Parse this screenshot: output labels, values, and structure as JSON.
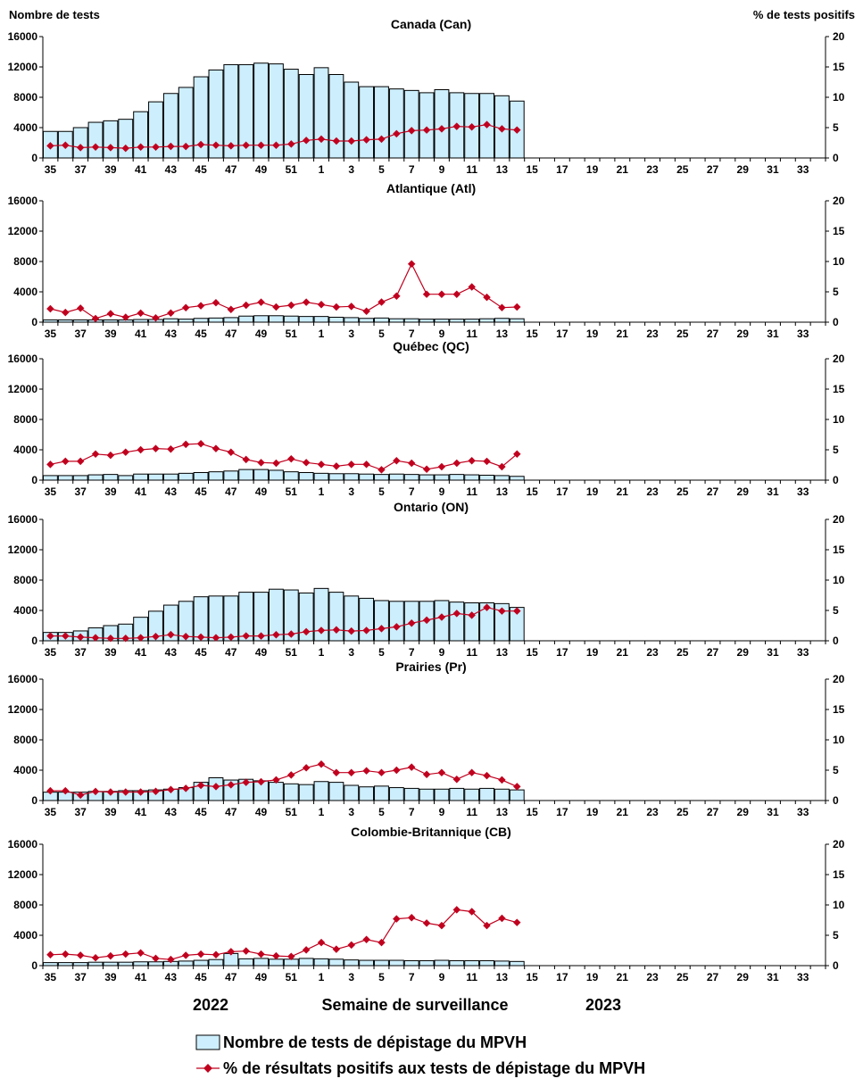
{
  "chart_data": {
    "type": "bar+line",
    "y_left_label": "Nombre de tests",
    "y_right_label": "% de tests positifs",
    "y_left_range": [
      0,
      16000
    ],
    "y_left_ticks": [
      "0",
      "4000",
      "8000",
      "12000",
      "16000"
    ],
    "y_right_range": [
      0,
      20
    ],
    "y_right_ticks": [
      "0",
      "5",
      "10",
      "15",
      "20"
    ],
    "weeks": [
      35,
      36,
      37,
      38,
      39,
      40,
      41,
      42,
      43,
      44,
      45,
      46,
      47,
      48,
      49,
      50,
      51,
      52,
      1,
      2,
      3,
      4,
      5,
      6,
      7,
      8,
      9,
      10,
      11,
      12,
      13,
      14,
      15,
      16,
      17,
      18,
      19,
      20,
      21,
      22,
      23,
      24,
      25,
      26,
      27,
      28,
      29,
      30,
      31,
      32,
      33,
      34
    ],
    "week_tick_labels": [
      "35",
      "37",
      "39",
      "41",
      "43",
      "45",
      "47",
      "49",
      "51",
      "1",
      "3",
      "5",
      "7",
      "9",
      "11",
      "13",
      "15",
      "17",
      "19",
      "21",
      "23",
      "25",
      "27",
      "29",
      "31",
      "33"
    ],
    "x_axis_title": "Semaine de surveillance",
    "year_labels": [
      "2022",
      "2023"
    ],
    "legend": {
      "bars": "Nombre de tests de dépistage du MPVH",
      "line": "% de résultats positifs aux tests de dépistage du MPVH"
    },
    "panels": [
      {
        "title": "Canada (Can)",
        "tests": [
          3500,
          3500,
          4000,
          4700,
          4900,
          5100,
          6100,
          7400,
          8500,
          9300,
          10700,
          11600,
          12300,
          12300,
          12500,
          12400,
          11700,
          11000,
          11900,
          11000,
          10000,
          9400,
          9400,
          9100,
          8900,
          8600,
          9000,
          8600,
          8500,
          8500,
          8200,
          7500
        ],
        "pct_positive": [
          2.0,
          2.1,
          1.7,
          1.8,
          1.7,
          1.6,
          1.8,
          1.8,
          1.9,
          1.9,
          2.2,
          2.1,
          2.0,
          2.1,
          2.1,
          2.1,
          2.3,
          2.9,
          3.1,
          2.8,
          2.8,
          3.0,
          3.1,
          4.0,
          4.5,
          4.6,
          4.8,
          5.2,
          5.1,
          5.5,
          4.8,
          4.6
        ]
      },
      {
        "title": "Atlantique (Atl)",
        "tests": [
          300,
          300,
          300,
          300,
          300,
          300,
          350,
          350,
          450,
          400,
          500,
          550,
          600,
          800,
          850,
          850,
          800,
          750,
          750,
          650,
          600,
          500,
          550,
          450,
          450,
          400,
          400,
          400,
          400,
          450,
          500,
          450
        ],
        "pct_positive": [
          2.2,
          1.6,
          2.3,
          0.6,
          1.4,
          0.8,
          1.5,
          0.7,
          1.5,
          2.4,
          2.7,
          3.2,
          2.1,
          2.8,
          3.3,
          2.5,
          2.8,
          3.3,
          2.9,
          2.5,
          2.6,
          1.8,
          3.3,
          4.3,
          9.6,
          4.6,
          4.6,
          4.6,
          5.8,
          4.1,
          2.4,
          2.5
        ]
      },
      {
        "title": "Québec (QC)",
        "tests": [
          600,
          600,
          600,
          700,
          750,
          600,
          800,
          800,
          800,
          900,
          1000,
          1100,
          1200,
          1400,
          1400,
          1300,
          1100,
          1000,
          900,
          850,
          850,
          800,
          750,
          800,
          750,
          700,
          700,
          750,
          700,
          650,
          600,
          500
        ],
        "pct_positive": [
          2.6,
          3.1,
          3.1,
          4.3,
          4.1,
          4.6,
          5.0,
          5.2,
          5.1,
          5.9,
          6.0,
          5.2,
          4.6,
          3.4,
          2.9,
          2.8,
          3.5,
          2.9,
          2.6,
          2.3,
          2.6,
          2.6,
          1.7,
          3.2,
          2.8,
          1.8,
          2.2,
          2.8,
          3.2,
          3.1,
          2.2,
          4.3
        ]
      },
      {
        "title": "Ontario (ON)",
        "tests": [
          1100,
          1100,
          1300,
          1700,
          2000,
          2200,
          3100,
          3900,
          4700,
          5200,
          5800,
          5900,
          5900,
          6400,
          6400,
          6800,
          6700,
          6300,
          6900,
          6400,
          5900,
          5600,
          5300,
          5200,
          5200,
          5200,
          5300,
          5100,
          5000,
          5000,
          4900,
          4400
        ],
        "pct_positive": [
          0.8,
          0.8,
          0.6,
          0.5,
          0.4,
          0.4,
          0.5,
          0.7,
          1.0,
          0.7,
          0.6,
          0.5,
          0.6,
          0.8,
          0.8,
          1.0,
          1.1,
          1.5,
          1.7,
          1.8,
          1.6,
          1.7,
          2.0,
          2.3,
          2.9,
          3.4,
          3.9,
          4.5,
          4.2,
          5.5,
          4.9,
          4.9
        ]
      },
      {
        "title": "Prairies (Pr)",
        "tests": [
          1100,
          1100,
          1100,
          1200,
          1200,
          1300,
          1300,
          1400,
          1500,
          1700,
          2400,
          3000,
          2700,
          2800,
          2600,
          2400,
          2200,
          2100,
          2500,
          2400,
          2000,
          1800,
          1900,
          1700,
          1600,
          1500,
          1500,
          1600,
          1500,
          1600,
          1500,
          1400
        ],
        "pct_positive": [
          1.6,
          1.6,
          0.9,
          1.5,
          1.4,
          1.4,
          1.4,
          1.5,
          1.8,
          2.0,
          2.5,
          2.3,
          2.6,
          3.0,
          3.1,
          3.4,
          4.2,
          5.4,
          6.0,
          4.6,
          4.6,
          4.9,
          4.6,
          5.0,
          5.5,
          4.3,
          4.6,
          3.5,
          4.6,
          4.1,
          3.4,
          2.3
        ]
      },
      {
        "title": "Colombie-Britannique (CB)",
        "tests": [
          400,
          400,
          400,
          450,
          450,
          450,
          500,
          500,
          550,
          600,
          700,
          800,
          1600,
          900,
          950,
          850,
          850,
          950,
          900,
          850,
          750,
          700,
          700,
          700,
          650,
          650,
          700,
          650,
          650,
          650,
          600,
          550
        ],
        "pct_positive": [
          1.8,
          1.9,
          1.7,
          1.3,
          1.6,
          1.9,
          2.1,
          1.2,
          1.0,
          1.7,
          1.9,
          1.8,
          2.3,
          2.4,
          1.9,
          1.6,
          1.5,
          2.6,
          3.8,
          2.7,
          3.4,
          4.3,
          3.8,
          7.7,
          7.9,
          7.0,
          6.6,
          9.2,
          8.9,
          6.6,
          7.8,
          7.1
        ]
      }
    ]
  },
  "colors": {
    "bar_fill": "#cdeefc",
    "bar_stroke": "#000000",
    "line": "#c0001e"
  }
}
